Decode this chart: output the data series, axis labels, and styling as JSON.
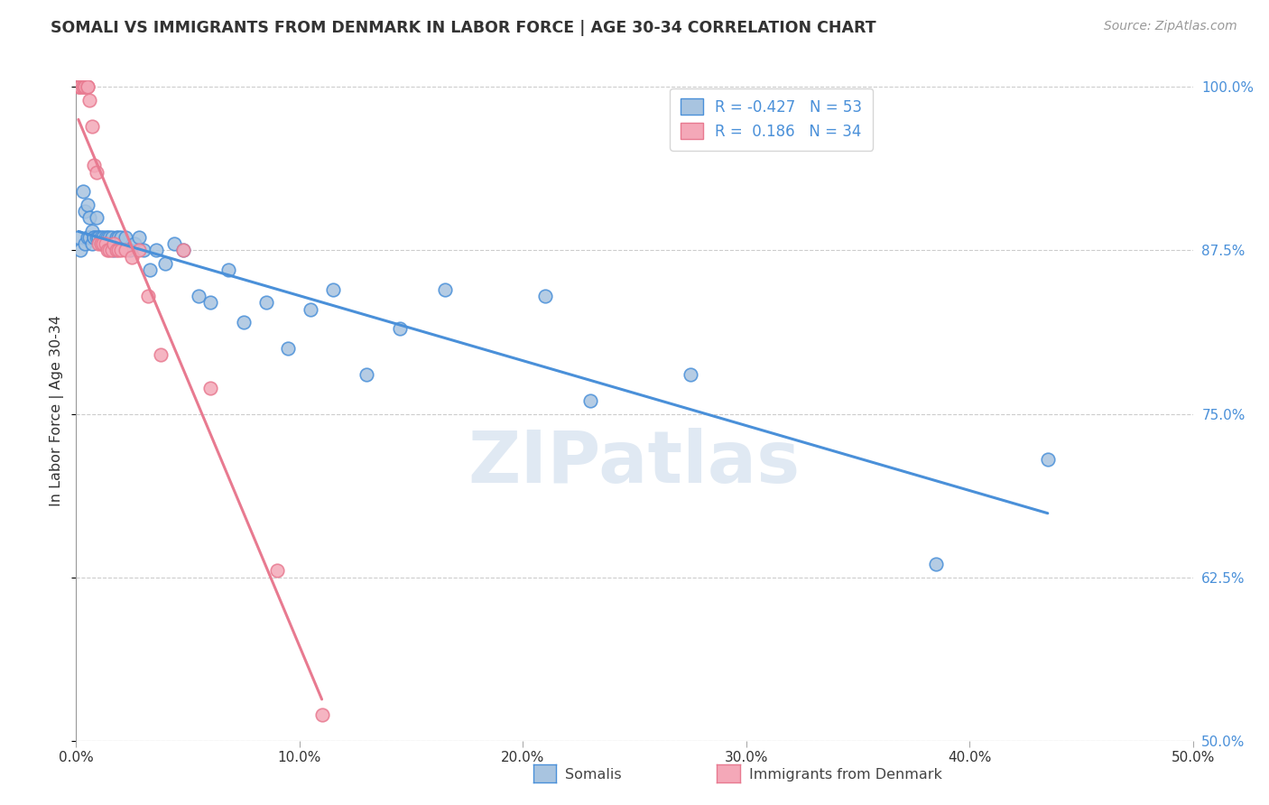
{
  "title": "SOMALI VS IMMIGRANTS FROM DENMARK IN LABOR FORCE | AGE 30-34 CORRELATION CHART",
  "source": "Source: ZipAtlas.com",
  "ylabel": "In Labor Force | Age 30-34",
  "xlim": [
    0.0,
    0.5
  ],
  "ylim": [
    0.5,
    1.005
  ],
  "xticks": [
    0.0,
    0.1,
    0.2,
    0.3,
    0.4,
    0.5
  ],
  "yticks": [
    0.5,
    0.625,
    0.75,
    0.875,
    1.0
  ],
  "ytick_labels": [
    "50.0%",
    "62.5%",
    "75.0%",
    "87.5%",
    "100.0%"
  ],
  "xtick_labels": [
    "0.0%",
    "10.0%",
    "20.0%",
    "30.0%",
    "40.0%",
    "50.0%"
  ],
  "somali_R": -0.427,
  "somali_N": 53,
  "denmark_R": 0.186,
  "denmark_N": 34,
  "somali_color": "#a8c4e0",
  "denmark_color": "#f4a8b8",
  "somali_line_color": "#4a90d9",
  "denmark_line_color": "#e87a90",
  "watermark": "ZIPatlas",
  "legend_somali": "Somalis",
  "legend_denmark": "Immigrants from Denmark",
  "somali_x": [
    0.001,
    0.002,
    0.003,
    0.004,
    0.004,
    0.005,
    0.005,
    0.006,
    0.006,
    0.007,
    0.007,
    0.008,
    0.008,
    0.009,
    0.009,
    0.01,
    0.01,
    0.011,
    0.012,
    0.013,
    0.014,
    0.015,
    0.016,
    0.017,
    0.018,
    0.019,
    0.02,
    0.022,
    0.024,
    0.026,
    0.028,
    0.03,
    0.033,
    0.036,
    0.04,
    0.044,
    0.048,
    0.055,
    0.06,
    0.068,
    0.075,
    0.085,
    0.095,
    0.105,
    0.115,
    0.13,
    0.145,
    0.165,
    0.21,
    0.23,
    0.275,
    0.385,
    0.435
  ],
  "somali_y": [
    0.885,
    0.875,
    0.92,
    0.905,
    0.88,
    0.885,
    0.91,
    0.9,
    0.885,
    0.89,
    0.88,
    0.885,
    0.885,
    0.885,
    0.9,
    0.885,
    0.885,
    0.885,
    0.885,
    0.885,
    0.885,
    0.885,
    0.885,
    0.875,
    0.885,
    0.885,
    0.885,
    0.885,
    0.875,
    0.88,
    0.885,
    0.875,
    0.86,
    0.875,
    0.865,
    0.88,
    0.875,
    0.84,
    0.835,
    0.86,
    0.82,
    0.835,
    0.8,
    0.83,
    0.845,
    0.78,
    0.815,
    0.845,
    0.84,
    0.76,
    0.78,
    0.635,
    0.715
  ],
  "denmark_x": [
    0.001,
    0.001,
    0.002,
    0.002,
    0.003,
    0.003,
    0.004,
    0.004,
    0.005,
    0.005,
    0.006,
    0.007,
    0.008,
    0.009,
    0.01,
    0.011,
    0.012,
    0.013,
    0.014,
    0.015,
    0.016,
    0.017,
    0.018,
    0.019,
    0.02,
    0.022,
    0.025,
    0.028,
    0.032,
    0.038,
    0.048,
    0.06,
    0.09,
    0.11
  ],
  "denmark_y": [
    1.0,
    1.0,
    1.0,
    1.0,
    1.0,
    1.0,
    1.0,
    1.0,
    1.0,
    1.0,
    0.99,
    0.97,
    0.94,
    0.935,
    0.88,
    0.88,
    0.88,
    0.88,
    0.875,
    0.875,
    0.875,
    0.88,
    0.875,
    0.875,
    0.875,
    0.875,
    0.87,
    0.875,
    0.84,
    0.795,
    0.875,
    0.77,
    0.63,
    0.52
  ]
}
